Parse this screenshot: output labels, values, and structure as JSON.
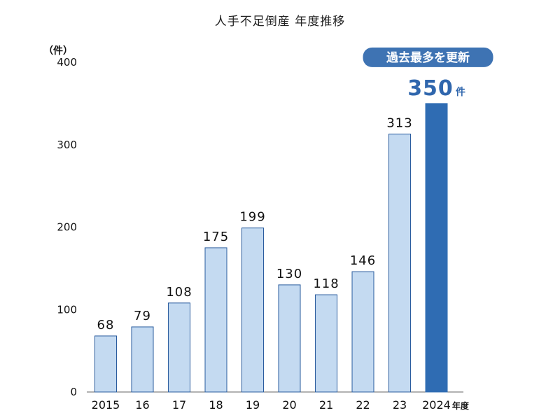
{
  "chart_data": {
    "type": "bar",
    "title": "人手不足倒産 年度推移",
    "ylabel": "（件）",
    "ylim": [
      0,
      400
    ],
    "yticks": [
      0,
      100,
      200,
      300,
      400
    ],
    "categories": [
      "2015",
      "16",
      "17",
      "18",
      "19",
      "20",
      "21",
      "22",
      "23",
      "2024"
    ],
    "category_suffix": "年度",
    "values": [
      68,
      79,
      108,
      175,
      199,
      130,
      118,
      146,
      313,
      350
    ],
    "value_unit": "件",
    "highlight_index": 9,
    "highlight_badge": "過去最多を更新",
    "grid": false,
    "colors": {
      "bar": "#c4daf1",
      "bar_edge": "#2a5c9e",
      "highlight": "#2f6cb3",
      "badge": "#3e73b3",
      "highlight_text": "#2f66ad",
      "axis": "#666666"
    }
  }
}
